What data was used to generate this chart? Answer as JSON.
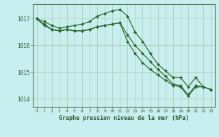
{
  "bg_color": "#c8eef0",
  "grid_color": "#c8c8c8",
  "line_color": "#2d6a2d",
  "marker_color": "#2d6a2d",
  "text_color": "#2d5a2d",
  "xlabel": "Graphe pression niveau de la mer (hPa)",
  "xlim": [
    -0.5,
    23.5
  ],
  "ylim": [
    1013.7,
    1017.55
  ],
  "yticks": [
    1014,
    1015,
    1016,
    1017
  ],
  "xticks": [
    0,
    1,
    2,
    3,
    4,
    5,
    6,
    7,
    8,
    9,
    10,
    11,
    12,
    13,
    14,
    15,
    16,
    17,
    18,
    19,
    20,
    21,
    22,
    23
  ],
  "series": [
    [
      1017.0,
      1016.9,
      1016.75,
      1016.65,
      1016.7,
      1016.75,
      1016.8,
      1016.9,
      1017.1,
      1017.2,
      1017.3,
      1017.35,
      1017.1,
      1016.5,
      1016.15,
      1015.7,
      1015.3,
      1015.05,
      1014.8,
      1014.8,
      1014.45,
      1014.8,
      1014.45,
      1014.35
    ],
    [
      1017.0,
      1016.8,
      1016.6,
      1016.55,
      1016.6,
      1016.55,
      1016.55,
      1016.6,
      1016.7,
      1016.75,
      1016.8,
      1016.85,
      1016.4,
      1016.0,
      1015.7,
      1015.4,
      1015.1,
      1014.85,
      1014.55,
      1014.5,
      1014.15,
      1014.5,
      1014.45,
      1014.35
    ],
    [
      1017.0,
      1016.75,
      1016.6,
      1016.55,
      1016.6,
      1016.55,
      1016.55,
      1016.6,
      1016.7,
      1016.75,
      1016.8,
      1016.85,
      1016.15,
      1015.7,
      1015.35,
      1015.1,
      1014.9,
      1014.7,
      1014.5,
      1014.45,
      1014.1,
      1014.45,
      1014.45,
      1014.35
    ]
  ]
}
